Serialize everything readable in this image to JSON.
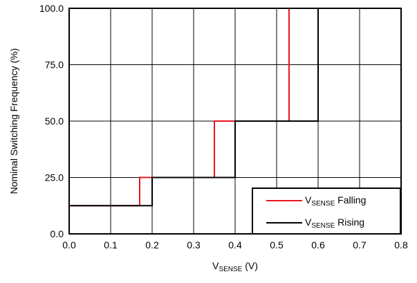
{
  "chart_data": {
    "type": "line",
    "title": "",
    "xlabel": {
      "main": "V",
      "sub": "SENSE",
      "rest": " (V)"
    },
    "ylabel": "Nominal Switching Frequency (%)",
    "xlim": [
      0.0,
      0.8
    ],
    "ylim": [
      0.0,
      100.0
    ],
    "x_ticks": [
      "0.0",
      "0.1",
      "0.2",
      "0.3",
      "0.4",
      "0.5",
      "0.6",
      "0.7",
      "0.8"
    ],
    "x_tick_values": [
      0.0,
      0.1,
      0.2,
      0.3,
      0.4,
      0.5,
      0.6,
      0.7,
      0.8
    ],
    "y_ticks": [
      "0.0",
      "25.0",
      "50.0",
      "75.0",
      "100.0"
    ],
    "y_tick_values": [
      0,
      25,
      50,
      75,
      100
    ],
    "grid": true,
    "legend_position": "bottom-right",
    "series": [
      {
        "name": "Falling",
        "legend": {
          "main": "V",
          "sub": "SENSE",
          "rest": " Falling"
        },
        "color": "#e8141c",
        "x": [
          0.0,
          0.17,
          0.17,
          0.35,
          0.35,
          0.53,
          0.53,
          0.6
        ],
        "y": [
          12.5,
          12.5,
          25,
          25,
          50,
          50,
          100,
          100
        ]
      },
      {
        "name": "Rising",
        "legend": {
          "main": "V",
          "sub": "SENSE",
          "rest": " Rising"
        },
        "color": "#000000",
        "x": [
          0.0,
          0.2,
          0.2,
          0.4,
          0.4,
          0.6,
          0.6,
          0.8
        ],
        "y": [
          12.5,
          12.5,
          25,
          25,
          50,
          50,
          100,
          100
        ]
      }
    ]
  }
}
